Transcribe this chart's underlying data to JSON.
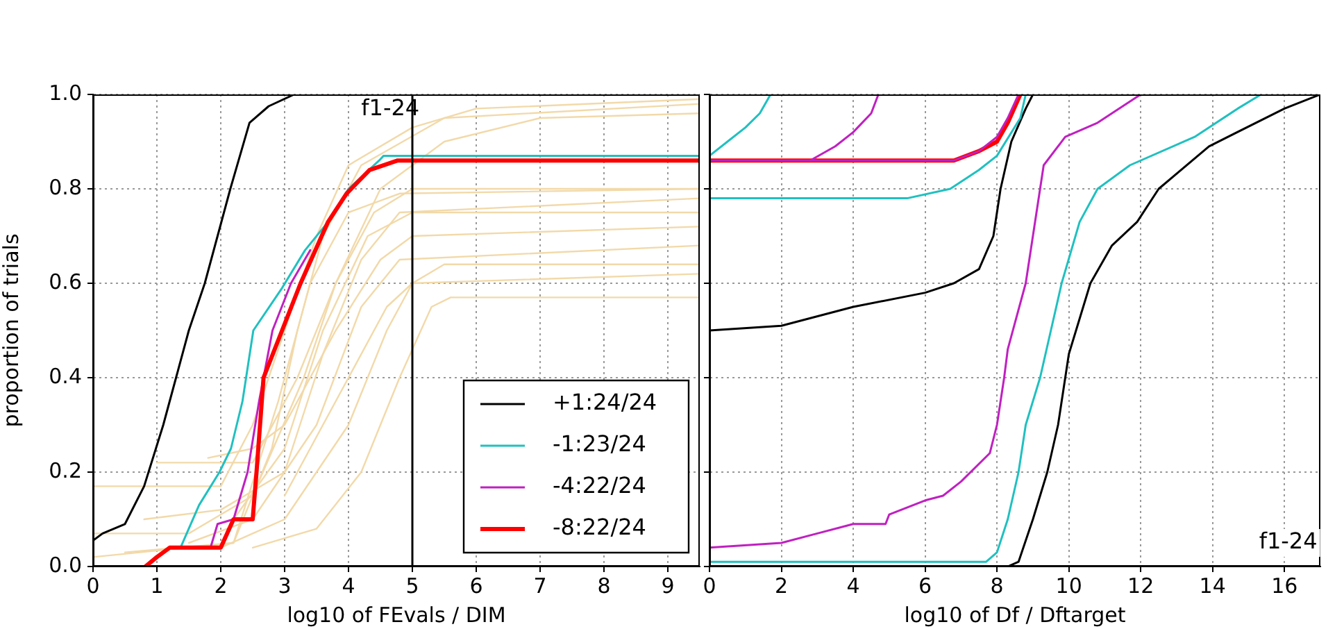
{
  "chart_data": [
    {
      "type": "line",
      "xlabel": "log10 of FEvals / DIM",
      "ylabel": "proportion of trials",
      "xlim": [
        0,
        9.5
      ],
      "ylim": [
        0,
        1
      ],
      "xticks": [
        0,
        1,
        2,
        3,
        4,
        5,
        6,
        7,
        8,
        9
      ],
      "yticks": [
        {
          "value": 0,
          "label": "0.0"
        },
        {
          "value": 0.2,
          "label": "0.2"
        },
        {
          "value": 0.4,
          "label": "0.4"
        },
        {
          "value": 0.6,
          "label": "0.6"
        },
        {
          "value": 0.8,
          "label": "0.8"
        },
        {
          "value": 1,
          "label": "1.0"
        }
      ],
      "grid": true,
      "legend": "bottom right",
      "line_style": "solid",
      "ref_lines": [
        {
          "axis": "x",
          "value": 5,
          "color": "#000000"
        }
      ],
      "annotations": [
        "f1-24"
      ],
      "series": [
        {
          "color": "#f2d9a9",
          "x": [
            0,
            2,
            2.5,
            3,
            3.5,
            4,
            5,
            6,
            9.5
          ],
          "values": [
            0.17,
            0.17,
            0.3,
            0.5,
            0.7,
            0.85,
            0.93,
            0.97,
            0.99
          ]
        },
        {
          "color": "#f2d9a9",
          "x": [
            0,
            2.2,
            2.8,
            3.2,
            3.6,
            4.2,
            5.5,
            9.5
          ],
          "values": [
            0.02,
            0.05,
            0.25,
            0.5,
            0.7,
            0.85,
            0.95,
            0.98
          ]
        },
        {
          "color": "#f2d9a9",
          "x": [
            0,
            1.5,
            2.5,
            3.3,
            3.8,
            4.4,
            5,
            9.5
          ],
          "values": [
            0.07,
            0.07,
            0.15,
            0.4,
            0.6,
            0.75,
            0.8,
            0.8
          ]
        },
        {
          "color": "#f2d9a9",
          "x": [
            0.8,
            2,
            3,
            3.6,
            4.2,
            4.8,
            9.5
          ],
          "values": [
            0.1,
            0.12,
            0.2,
            0.45,
            0.65,
            0.75,
            0.78
          ]
        },
        {
          "color": "#f2d9a9",
          "x": [
            1.8,
            2.5,
            3,
            3.8,
            4.5,
            5,
            9.5
          ],
          "values": [
            0.23,
            0.25,
            0.3,
            0.5,
            0.65,
            0.7,
            0.72
          ]
        },
        {
          "color": "#f2d9a9",
          "x": [
            1.5,
            2.5,
            3.5,
            4.2,
            4.8,
            9.5
          ],
          "values": [
            0.05,
            0.1,
            0.3,
            0.55,
            0.65,
            0.68
          ]
        },
        {
          "color": "#f2d9a9",
          "x": [
            2,
            3,
            4,
            4.6,
            5,
            5.5,
            9.5
          ],
          "values": [
            0.04,
            0.1,
            0.3,
            0.5,
            0.6,
            0.64,
            0.64
          ]
        },
        {
          "color": "#f2d9a9",
          "x": [
            2.5,
            3.5,
            4.2,
            4.8,
            5.3,
            5.6,
            9.5
          ],
          "values": [
            0.04,
            0.08,
            0.2,
            0.4,
            0.55,
            0.57,
            0.57
          ]
        },
        {
          "color": "#f2d9a9",
          "x": [
            1,
            2.5,
            3.2,
            3.8,
            4.5,
            5.5,
            7,
            9.5
          ],
          "values": [
            0.22,
            0.22,
            0.4,
            0.6,
            0.8,
            0.9,
            0.95,
            0.96
          ]
        },
        {
          "color": "#f2d9a9",
          "x": [
            0.5,
            2.2,
            2.9,
            3.4,
            4,
            4.8,
            9.5
          ],
          "values": [
            0.03,
            0.05,
            0.35,
            0.6,
            0.75,
            0.79,
            0.8
          ]
        },
        {
          "color": "#f2d9a9",
          "x": [
            2.2,
            3,
            3.6,
            4.3,
            5,
            9.5
          ],
          "values": [
            0.1,
            0.25,
            0.5,
            0.7,
            0.75,
            0.75
          ]
        },
        {
          "color": "#f2d9a9",
          "x": [
            3,
            4,
            4.6,
            5,
            9.5
          ],
          "values": [
            0.15,
            0.4,
            0.55,
            0.6,
            0.62
          ]
        },
        {
          "name": "+1:24/24",
          "color": "#000000",
          "x": [
            0,
            0.15,
            0.5,
            0.8,
            1.1,
            1.3,
            1.5,
            1.75,
            2.15,
            2.45,
            2.75,
            3.15
          ],
          "values": [
            0.055,
            0.07,
            0.09,
            0.17,
            0.3,
            0.4,
            0.5,
            0.6,
            0.8,
            0.94,
            0.975,
            1
          ]
        },
        {
          "name": "-1:23/24",
          "color": "#20c0c0",
          "x": [
            1.37,
            1.66,
            1.98,
            2.16,
            2.34,
            2.51,
            2.96,
            3.32,
            3.68,
            4,
            4.48,
            4.55,
            9.5
          ],
          "values": [
            0.04,
            0.13,
            0.2,
            0.25,
            0.35,
            0.5,
            0.59,
            0.67,
            0.73,
            0.8,
            0.86,
            0.87,
            0.87
          ]
        },
        {
          "name": "-4:22/24",
          "color": "#c020c0",
          "x": [
            1.84,
            1.95,
            2.2,
            2.42,
            2.6,
            2.81,
            3.1,
            3.4
          ],
          "values": [
            0.04,
            0.09,
            0.1,
            0.2,
            0.35,
            0.5,
            0.6,
            0.67
          ]
        },
        {
          "name": "-8:22/24",
          "color": "#ff0000",
          "x": [
            0.82,
            1,
            1.2,
            2,
            2.2,
            2.5,
            2.56,
            2.67,
            2.96,
            3.25,
            3.68,
            3.97,
            4.33,
            4.77,
            9.5
          ],
          "values": [
            0,
            0.02,
            0.04,
            0.04,
            0.1,
            0.1,
            0.2,
            0.4,
            0.5,
            0.6,
            0.73,
            0.79,
            0.84,
            0.86,
            0.86
          ]
        }
      ]
    },
    {
      "type": "line",
      "xlabel": "log10 of Df / Dftarget",
      "xlim": [
        0,
        17
      ],
      "ylim": [
        0,
        1
      ],
      "xticks": [
        0,
        2,
        4,
        6,
        8,
        10,
        12,
        14,
        16
      ],
      "yticks": [
        0,
        0.2,
        0.4,
        0.6,
        0.8,
        1
      ],
      "grid": true,
      "tick_labels": "x",
      "line_style": "solid",
      "annotations": [
        "f1-24"
      ],
      "series": [
        {
          "color": "#000000",
          "x": [
            8.3,
            8.6,
            9,
            9.4,
            9.7,
            10,
            10.6,
            11.2,
            11.9,
            12.5,
            13.9,
            16,
            17
          ],
          "values": [
            0,
            0.01,
            0.1,
            0.2,
            0.3,
            0.45,
            0.6,
            0.68,
            0.73,
            0.8,
            0.89,
            0.97,
            1
          ]
        },
        {
          "color": "#20c0c0",
          "x": [
            0,
            6.7,
            7.7,
            8,
            8.3,
            8.6,
            8.8,
            9.2,
            9.5,
            9.8,
            10.3,
            10.8,
            11.7,
            13.5,
            14.7,
            15.35
          ],
          "values": [
            0.01,
            0.01,
            0.01,
            0.03,
            0.1,
            0.2,
            0.3,
            0.4,
            0.5,
            0.6,
            0.73,
            0.8,
            0.85,
            0.91,
            0.97,
            1
          ]
        },
        {
          "color": "#c020c0",
          "x": [
            0,
            2,
            3,
            4,
            4.9,
            5,
            6,
            6.5,
            7,
            7.8,
            8,
            8.2,
            8.3,
            8.8,
            9.2,
            9.3,
            9.9,
            10.8,
            12
          ],
          "values": [
            0.04,
            0.05,
            0.07,
            0.09,
            0.09,
            0.11,
            0.14,
            0.15,
            0.18,
            0.24,
            0.3,
            0.4,
            0.46,
            0.6,
            0.8,
            0.85,
            0.91,
            0.94,
            1
          ]
        },
        {
          "color": "#000000",
          "x": [
            0,
            2,
            4,
            6,
            6.8,
            7.5,
            7.9,
            8.1,
            8.4,
            8.8,
            9
          ],
          "values": [
            0.5,
            0.51,
            0.55,
            0.58,
            0.6,
            0.63,
            0.7,
            0.8,
            0.9,
            0.97,
            1
          ]
        },
        {
          "color": "#20c0c0",
          "x": [
            0,
            5.5,
            6.7,
            7.5,
            8,
            8.65,
            8.8
          ],
          "values": [
            0.78,
            0.78,
            0.8,
            0.84,
            0.87,
            0.95,
            1
          ]
        },
        {
          "color": "#ff0000",
          "x": [
            0,
            6.8,
            7.5,
            8,
            8.3,
            8.65
          ],
          "values": [
            0.86,
            0.86,
            0.88,
            0.9,
            0.94,
            1
          ]
        },
        {
          "color": "#c020c0",
          "x": [
            0,
            6.8,
            7.5,
            8,
            8.3,
            8.6
          ],
          "values": [
            0.86,
            0.86,
            0.88,
            0.91,
            0.95,
            1
          ]
        },
        {
          "color": "#20c0c0",
          "x": [
            0,
            0.5,
            1,
            1.4,
            1.7
          ],
          "values": [
            0.87,
            0.9,
            0.93,
            0.96,
            1
          ]
        },
        {
          "color": "#c020c0",
          "x": [
            2.8,
            3.5,
            4,
            4.5,
            4.7
          ],
          "values": [
            0.86,
            0.89,
            0.92,
            0.96,
            1
          ]
        }
      ]
    }
  ]
}
